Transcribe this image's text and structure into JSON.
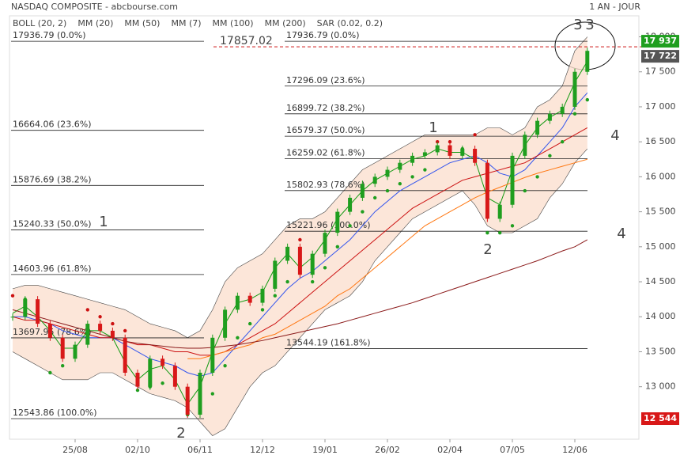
{
  "chart_data": {
    "type": "candlestick",
    "title": "NASDAQ COMPOSITE - abcbourse.com",
    "period": "1 AN - JOUR",
    "categories": [
      null,
      null,
      null,
      null,
      null,
      "25/08",
      null,
      null,
      null,
      null,
      "02/10",
      null,
      null,
      null,
      null,
      "06/11",
      null,
      null,
      null,
      null,
      "12/12",
      null,
      null,
      null,
      null,
      "19/01",
      null,
      null,
      null,
      null,
      "26/02",
      null,
      null,
      null,
      null,
      "02/04",
      null,
      null,
      null,
      null,
      "07/05",
      null,
      null,
      null,
      null,
      "12/06",
      null
    ],
    "close": [
      14000,
      14250,
      13900,
      13700,
      13400,
      13600,
      13900,
      13800,
      13700,
      13200,
      13000,
      13400,
      13300,
      13000,
      12600,
      13200,
      13700,
      14100,
      14300,
      14200,
      14400,
      14800,
      15000,
      14600,
      14900,
      15200,
      15500,
      15700,
      15900,
      16000,
      16100,
      16200,
      16300,
      16350,
      16450,
      16300,
      16400,
      16200,
      15400,
      15600,
      16300,
      16600,
      16800,
      16900,
      17000,
      17500,
      17800
    ],
    "up_color": "#1f9e1f",
    "down_color": "#d81818",
    "bands": {
      "name": "BOLL (20, 2)",
      "color": "#888888",
      "fill": "#fbe0cf",
      "upper": [
        14400,
        14450,
        14450,
        14400,
        14350,
        14300,
        14250,
        14200,
        14150,
        14100,
        14000,
        13900,
        13850,
        13800,
        13700,
        13800,
        14100,
        14500,
        14700,
        14800,
        14900,
        15100,
        15300,
        15400,
        15400,
        15500,
        15700,
        15900,
        16100,
        16200,
        16300,
        16400,
        16500,
        16600,
        16600,
        16600,
        16600,
        16600,
        16700,
        16700,
        16600,
        16700,
        17000,
        17100,
        17300,
        17800,
        18000
      ],
      "lower": [
        13500,
        13400,
        13300,
        13200,
        13100,
        13100,
        13100,
        13200,
        13200,
        13100,
        13000,
        12900,
        12850,
        12800,
        12700,
        12500,
        12300,
        12400,
        12700,
        13000,
        13200,
        13300,
        13500,
        13700,
        13900,
        14100,
        14200,
        14300,
        14500,
        14800,
        15000,
        15200,
        15400,
        15500,
        15600,
        15700,
        15800,
        15600,
        15300,
        15200,
        15200,
        15300,
        15400,
        15700,
        15900,
        16200,
        16400
      ]
    },
    "series": [
      {
        "name": "MM (20)",
        "color": "#3355ee",
        "values": [
          14000,
          14000,
          13950,
          13900,
          13800,
          13750,
          13700,
          13700,
          13700,
          13600,
          13500,
          13400,
          13350,
          13300,
          13200,
          13150,
          13200,
          13400,
          13600,
          13800,
          14000,
          14200,
          14400,
          14550,
          14650,
          14800,
          14950,
          15100,
          15300,
          15500,
          15650,
          15800,
          15900,
          16000,
          16100,
          16200,
          16250,
          16300,
          16200,
          16050,
          16000,
          16100,
          16300,
          16500,
          16700,
          17000,
          17200
        ]
      },
      {
        "name": "MM (50)",
        "color": "#cc1111",
        "values": [
          14000,
          13950,
          13950,
          13900,
          13850,
          13800,
          13750,
          13700,
          13700,
          13650,
          13600,
          13600,
          13550,
          13500,
          13500,
          13450,
          13450,
          13500,
          13600,
          13700,
          13800,
          13900,
          14050,
          14200,
          14350,
          14500,
          14650,
          14800,
          14950,
          15100,
          15250,
          15400,
          15550,
          15650,
          15750,
          15850,
          15950,
          16000,
          16050,
          16100,
          16150,
          16200,
          16300,
          16400,
          16500,
          16600,
          16700
        ]
      },
      {
        "name": "MM (7)",
        "color": "#119911",
        "values": [
          14050,
          14150,
          14000,
          13800,
          13550,
          13550,
          13800,
          13800,
          13700,
          13350,
          13100,
          13250,
          13300,
          13100,
          12750,
          13000,
          13500,
          13900,
          14200,
          14250,
          14350,
          14700,
          14900,
          14700,
          14850,
          15100,
          15400,
          15600,
          15800,
          15950,
          16050,
          16150,
          16250,
          16300,
          16400,
          16350,
          16350,
          16250,
          15700,
          15600,
          16100,
          16450,
          16700,
          16850,
          16950,
          17350,
          17650
        ]
      },
      {
        "name": "MM (100)",
        "color": "#ff7711",
        "values": [
          null,
          null,
          null,
          null,
          null,
          null,
          null,
          null,
          null,
          null,
          null,
          null,
          null,
          null,
          13400,
          13400,
          13450,
          13500,
          13550,
          13600,
          13700,
          13750,
          13850,
          13950,
          14050,
          14150,
          14300,
          14400,
          14550,
          14700,
          14850,
          15000,
          15150,
          15300,
          15400,
          15500,
          15600,
          15700,
          15780,
          15850,
          15920,
          15990,
          16050,
          16100,
          16150,
          16200,
          16250
        ]
      },
      {
        "name": "MM (200)",
        "color": "#8b1a1a",
        "values": [
          14100,
          14050,
          14000,
          13950,
          13900,
          13850,
          13800,
          13750,
          13700,
          13650,
          13620,
          13600,
          13580,
          13560,
          13550,
          13550,
          13560,
          13580,
          13600,
          13630,
          13660,
          13700,
          13740,
          13780,
          13820,
          13860,
          13900,
          13950,
          14000,
          14050,
          14100,
          14150,
          14200,
          14260,
          14320,
          14380,
          14440,
          14500,
          14560,
          14620,
          14680,
          14740,
          14800,
          14870,
          14940,
          15000,
          15100
        ]
      },
      {
        "name": "SAR (0.02, 0.2)",
        "color": "#cc1111",
        "dots": true,
        "values": [
          14300,
          14250,
          14200,
          13200,
          13300,
          13500,
          14100,
          14000,
          13900,
          13800,
          12950,
          13000,
          13050,
          13100,
          12600,
          12700,
          12900,
          13300,
          13700,
          13900,
          14100,
          14300,
          14500,
          15100,
          14500,
          14700,
          15000,
          15300,
          15500,
          15700,
          15800,
          15900,
          16000,
          16100,
          16500,
          16500,
          16400,
          16600,
          15200,
          15200,
          15300,
          15800,
          16000,
          16300,
          16500,
          16900,
          17100
        ]
      }
    ],
    "ylim": [
      12250,
      18300
    ],
    "yticks": [
      {
        "value": 13000,
        "label": "13 000"
      },
      {
        "value": 13500,
        "label": "13 500"
      },
      {
        "value": 14000,
        "label": "14 000"
      },
      {
        "value": 14500,
        "label": "14 500"
      },
      {
        "value": 15000,
        "label": "15 000"
      },
      {
        "value": 15500,
        "label": "15 500"
      },
      {
        "value": 16000,
        "label": "16 000"
      },
      {
        "value": 16500,
        "label": "16 500"
      },
      {
        "value": 17000,
        "label": "17 000"
      },
      {
        "value": 17500,
        "label": "17 500"
      },
      {
        "value": 18000,
        "label": "18 000"
      }
    ],
    "grid": false,
    "fib_left": [
      {
        "value": 17936.79,
        "label": "17936.79  (0.0%)"
      },
      {
        "value": 16664.06,
        "label": "16664.06  (23.6%)"
      },
      {
        "value": 15876.69,
        "label": "15876.69  (38.2%)"
      },
      {
        "value": 15240.33,
        "label": "15240.33  (50.0%)"
      },
      {
        "value": 14603.96,
        "label": "14603.96  (61.8%)"
      },
      {
        "value": 13697.95,
        "label": "13697.95  (78.6%)"
      },
      {
        "value": 12543.86,
        "label": "12543.86  (100.0%)"
      }
    ],
    "fib_right": [
      {
        "value": 17936.79,
        "label": "17936.79  (0.0%)"
      },
      {
        "value": 17296.09,
        "label": "17296.09  (23.6%)"
      },
      {
        "value": 16899.72,
        "label": "16899.72  (38.2%)"
      },
      {
        "value": 16579.37,
        "label": "16579.37  (50.0%)"
      },
      {
        "value": 16259.02,
        "label": "16259.02  (61.8%)"
      },
      {
        "value": 15802.93,
        "label": "15802.93  (78.6%)"
      },
      {
        "value": 15221.96,
        "label": "15221.96  (100.0%)"
      },
      {
        "value": 13544.19,
        "label": "13544.19  (161.8%)"
      }
    ],
    "reference_line": {
      "value": 17857.02,
      "label": "17857.02",
      "color": "#cc1111"
    },
    "price_tags": [
      {
        "value": 17937,
        "label": "17 937",
        "color": "#1f9e1f"
      },
      {
        "value": 17722,
        "label": "17 722",
        "color": "#555555"
      },
      {
        "value": 12544,
        "label": "12 544",
        "color": "#d81818"
      }
    ],
    "annotations": [
      {
        "text": "1",
        "color": "#111111"
      },
      {
        "text": "2",
        "color": "#111111"
      },
      {
        "text": "3",
        "color": "#111111"
      },
      {
        "text": "4",
        "color": "#111111"
      },
      {
        "text": "1",
        "color": "#b22222"
      },
      {
        "text": "2",
        "color": "#b22222"
      },
      {
        "text": "3",
        "color": "#b22222"
      },
      {
        "text": "4",
        "color": "#b22222"
      }
    ]
  }
}
